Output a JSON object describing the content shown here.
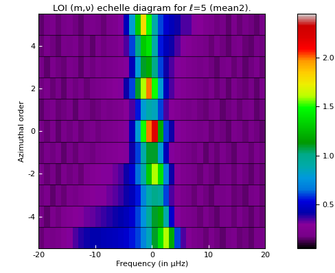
{
  "chart_data": {
    "type": "heatmap",
    "title": "LOI (m,ν) echelle diagram for ℓ=5 (mean2).",
    "x_label": "Frequency (in µHz)",
    "y_label": "Azimuthal order",
    "x": [
      -19.5,
      -18.5,
      -17.5,
      -16.5,
      -15.5,
      -14.5,
      -13.5,
      -12.5,
      -11.5,
      -10.5,
      -9.5,
      -8.5,
      -7.5,
      -6.5,
      -5.5,
      -4.5,
      -3.5,
      -2.5,
      -1.5,
      -0.5,
      0.5,
      1.5,
      2.5,
      3.5,
      4.5,
      5.5,
      6.5,
      7.5,
      8.5,
      9.5,
      10.5,
      11.5,
      12.5,
      13.5,
      14.5,
      15.5,
      16.5,
      17.5,
      18.5,
      19.5
    ],
    "y": [
      -5,
      -4,
      -3,
      -2,
      -1,
      0,
      1,
      2,
      3,
      4,
      5
    ],
    "xlim": [
      -20,
      20
    ],
    "xticks": [
      -20,
      -10,
      0,
      10,
      20
    ],
    "ylim": [
      -5.5,
      5.5
    ],
    "yticks": [
      -4,
      -2,
      0,
      2,
      4
    ],
    "cells": [
      [
        0.16,
        0.2,
        0.18,
        0.2,
        0.25,
        0.3,
        0.35,
        0.38,
        0.4,
        0.42,
        0.42,
        0.44,
        0.45,
        0.46,
        0.48,
        0.5,
        0.55,
        0.6,
        0.7,
        0.85,
        1.1,
        1.4,
        1.6,
        1.2,
        0.6,
        0.35,
        0.25,
        0.2,
        0.18,
        0.16,
        0.2,
        0.17,
        0.15,
        0.18,
        0.2,
        0.16,
        0.17,
        0.15,
        0.19,
        0.18
      ],
      [
        0.18,
        0.15,
        0.2,
        0.17,
        0.22,
        0.25,
        0.28,
        0.3,
        0.32,
        0.33,
        0.35,
        0.36,
        0.38,
        0.4,
        0.42,
        0.45,
        0.5,
        0.6,
        0.75,
        0.95,
        1.1,
        1.2,
        0.9,
        0.5,
        0.3,
        0.22,
        0.2,
        0.18,
        0.16,
        0.2,
        0.17,
        0.15,
        0.18,
        0.19,
        0.16,
        0.2,
        0.17,
        0.15,
        0.18,
        0.16
      ],
      [
        0.17,
        0.2,
        0.15,
        0.18,
        0.16,
        0.2,
        0.18,
        0.22,
        0.25,
        0.28,
        0.3,
        0.3,
        0.32,
        0.34,
        0.36,
        0.4,
        0.45,
        0.55,
        0.7,
        0.9,
        1.0,
        0.95,
        0.6,
        0.35,
        0.25,
        0.2,
        0.18,
        0.16,
        0.2,
        0.17,
        0.15,
        0.19,
        0.18,
        0.2,
        0.16,
        0.17,
        0.15,
        0.18,
        0.2,
        0.16
      ],
      [
        0.2,
        0.16,
        0.18,
        0.15,
        0.2,
        0.17,
        0.19,
        0.16,
        0.22,
        0.25,
        0.27,
        0.3,
        0.3,
        0.32,
        0.35,
        0.4,
        0.5,
        0.65,
        0.9,
        1.3,
        1.6,
        1.4,
        0.7,
        0.4,
        0.28,
        0.22,
        0.2,
        0.18,
        0.16,
        0.2,
        0.17,
        0.15,
        0.18,
        0.19,
        0.16,
        0.2,
        0.17,
        0.15,
        0.18,
        0.16
      ],
      [
        0.16,
        0.19,
        0.17,
        0.2,
        0.15,
        0.18,
        0.16,
        0.2,
        0.18,
        0.17,
        0.2,
        0.22,
        0.24,
        0.26,
        0.28,
        0.3,
        0.4,
        0.6,
        0.9,
        1.1,
        1.1,
        0.8,
        0.45,
        0.3,
        0.24,
        0.2,
        0.18,
        0.17,
        0.2,
        0.15,
        0.18,
        0.16,
        0.2,
        0.17,
        0.15,
        0.19,
        0.18,
        0.16,
        0.2,
        0.17
      ],
      [
        0.18,
        0.16,
        0.2,
        0.15,
        0.19,
        0.17,
        0.2,
        0.16,
        0.18,
        0.2,
        0.17,
        0.19,
        0.2,
        0.22,
        0.25,
        0.3,
        0.45,
        0.8,
        1.5,
        2.0,
        2.2,
        1.2,
        0.6,
        0.4,
        0.3,
        0.25,
        0.22,
        0.2,
        0.18,
        0.2,
        0.16,
        0.18,
        0.17,
        0.15,
        0.2,
        0.18,
        0.16,
        0.19,
        0.17,
        0.15
      ],
      [
        0.15,
        0.18,
        0.2,
        0.16,
        0.17,
        0.19,
        0.15,
        0.2,
        0.18,
        0.16,
        0.17,
        0.2,
        0.18,
        0.2,
        0.22,
        0.28,
        0.35,
        0.55,
        0.8,
        0.9,
        0.85,
        0.6,
        0.35,
        0.28,
        0.24,
        0.2,
        0.18,
        0.2,
        0.17,
        0.16,
        0.18,
        0.2,
        0.15,
        0.17,
        0.19,
        0.16,
        0.18,
        0.2,
        0.15,
        0.17
      ],
      [
        0.17,
        0.2,
        0.16,
        0.18,
        0.15,
        0.2,
        0.17,
        0.19,
        0.16,
        0.18,
        0.2,
        0.22,
        0.25,
        0.28,
        0.3,
        0.4,
        0.6,
        1.1,
        1.6,
        2.0,
        1.5,
        0.8,
        0.45,
        0.35,
        0.3,
        0.25,
        0.22,
        0.2,
        0.18,
        0.17,
        0.2,
        0.16,
        0.18,
        0.15,
        0.2,
        0.17,
        0.16,
        0.18,
        0.15,
        0.19
      ],
      [
        0.18,
        0.15,
        0.2,
        0.17,
        0.16,
        0.2,
        0.18,
        0.15,
        0.19,
        0.17,
        0.2,
        0.18,
        0.2,
        0.22,
        0.25,
        0.3,
        0.45,
        0.8,
        1.1,
        1.2,
        1.0,
        0.6,
        0.4,
        0.35,
        0.3,
        0.26,
        0.22,
        0.2,
        0.18,
        0.2,
        0.17,
        0.15,
        0.18,
        0.2,
        0.16,
        0.18,
        0.15,
        0.17,
        0.2,
        0.16
      ],
      [
        0.16,
        0.2,
        0.17,
        0.15,
        0.19,
        0.18,
        0.2,
        0.16,
        0.18,
        0.15,
        0.2,
        0.17,
        0.19,
        0.2,
        0.25,
        0.35,
        0.6,
        1.0,
        1.3,
        1.4,
        0.9,
        0.55,
        0.45,
        0.4,
        0.35,
        0.3,
        0.26,
        0.22,
        0.2,
        0.18,
        0.16,
        0.2,
        0.17,
        0.15,
        0.18,
        0.2,
        0.16,
        0.15,
        0.18,
        0.17
      ],
      [
        0.15,
        0.18,
        0.2,
        0.16,
        0.18,
        0.2,
        0.17,
        0.15,
        0.19,
        0.2,
        0.18,
        0.16,
        0.2,
        0.22,
        0.3,
        0.45,
        0.8,
        1.3,
        1.8,
        1.5,
        0.9,
        0.6,
        0.5,
        0.45,
        0.4,
        0.35,
        0.35,
        0.3,
        0.28,
        0.22,
        0.2,
        0.17,
        0.18,
        0.15,
        0.2,
        0.16,
        0.18,
        0.17,
        0.15,
        0.18
      ]
    ],
    "colorbar_range": [
      0.05,
      2.45
    ],
    "colorbar_ticks": [
      {
        "value": 0.5,
        "label": "0.5"
      },
      {
        "value": 1,
        "label": "1.0"
      },
      {
        "value": 1.5,
        "label": "1.5"
      },
      {
        "value": 2,
        "label": "2.0"
      }
    ]
  }
}
